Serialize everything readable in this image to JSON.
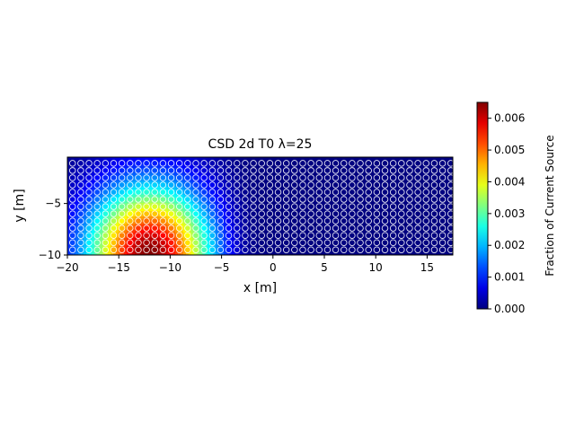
{
  "chart_data": {
    "type": "heatmap",
    "title": "CSD 2d T0  λ=25",
    "xlabel": "x [m]",
    "ylabel": "y [m]",
    "xlim": [
      -20,
      17.5
    ],
    "ylim": [
      -10,
      -0.5
    ],
    "xticks": [
      -20,
      -15,
      -10,
      -5,
      0,
      5,
      10,
      15
    ],
    "xtick_labels": [
      "−20",
      "−15",
      "−10",
      "−5",
      "0",
      "5",
      "10",
      "15"
    ],
    "yticks": [
      -10,
      -5
    ],
    "ytick_labels": [
      "−10",
      "−5"
    ],
    "colorbar": {
      "label": "Fraction of Current Source",
      "min": 0.0,
      "max": 0.0065,
      "ticks": [
        0.0,
        0.001,
        0.002,
        0.003,
        0.004,
        0.005,
        0.006
      ],
      "tick_labels": [
        "0.000",
        "0.001",
        "0.002",
        "0.003",
        "0.004",
        "0.005",
        "0.006"
      ],
      "colormap": "jet"
    },
    "field": {
      "peak_value": 0.0065,
      "peak_x": -12,
      "peak_y": -10,
      "sigma_x": 4.2,
      "sigma_y": 4.6,
      "cutoff_x": -3
    },
    "grid_points": {
      "x_start": -19.5,
      "x_step": 0.8,
      "y_start": -9.5,
      "y_step": 0.7,
      "marker_edge_color": "#ffffff"
    },
    "grid": false,
    "legend": "none"
  }
}
